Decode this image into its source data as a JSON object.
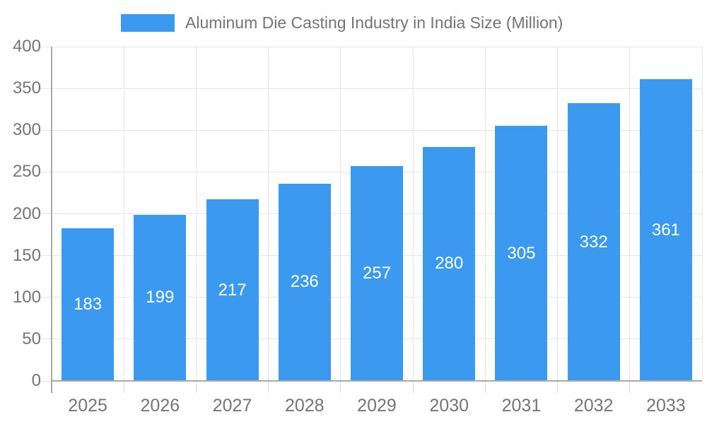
{
  "legend": {
    "label": "Aluminum Die Casting Industry in India Size (Million)"
  },
  "chart_data": {
    "type": "bar",
    "title": "Aluminum Die Casting Industry in India Size (Million)",
    "categories": [
      "2025",
      "2026",
      "2027",
      "2028",
      "2029",
      "2030",
      "2031",
      "2032",
      "2033"
    ],
    "series": [
      {
        "name": "Aluminum Die Casting Industry in India Size (Million)",
        "values": [
          183,
          199,
          217,
          236,
          257,
          280,
          305,
          332,
          361
        ]
      }
    ],
    "xlabel": "",
    "ylabel": "",
    "ylim": [
      0,
      400
    ],
    "ytick_step": 50,
    "yticks": [
      0,
      50,
      100,
      150,
      200,
      250,
      300,
      350,
      400
    ],
    "grid": true,
    "legend_position": "top",
    "bar_color": "#3B99F0",
    "bar_label_color": "#FFFFFF",
    "axis_text_color": "#757575",
    "grid_color": "#E6E6E6",
    "tick_color": "#D6D6D6",
    "axis_line_color": "#A9A9A9",
    "background": "#FFFFFF"
  }
}
